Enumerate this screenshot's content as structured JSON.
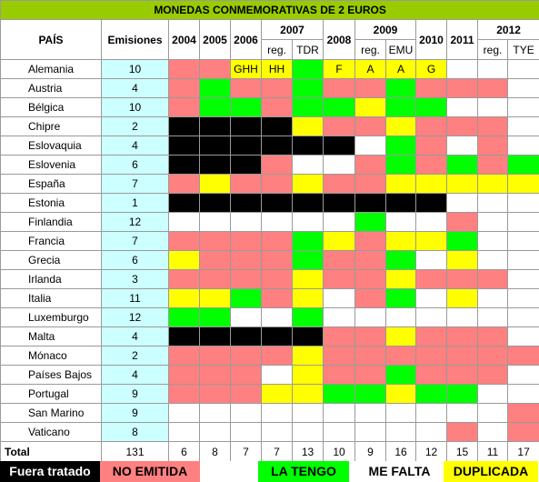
{
  "title": "MONEDAS CONMEMORATIVAS DE 2 EUROS",
  "headers": {
    "pais": "PAÍS",
    "emisiones": "Emisiones",
    "y2004": "2004",
    "y2005": "2005",
    "y2006": "2006",
    "y2007": "2007",
    "y2007_reg": "reg.",
    "y2007_tdr": "TDR",
    "y2008": "2008",
    "y2009": "2009",
    "y2009_reg": "reg.",
    "y2009_emu": "EMU",
    "y2010": "2010",
    "y2011": "2011",
    "y2012": "2012",
    "y2012_reg": "reg.",
    "y2012_tye": "TYE"
  },
  "status_colors": {
    "N": "#ff8080",
    "T": "#00ff00",
    "F": "#ffffff",
    "D": "#ffff00",
    "X": "#000000"
  },
  "rows": [
    {
      "country": "Alemania",
      "emisiones": "10",
      "cells": [
        [
          "N",
          ""
        ],
        [
          "N",
          ""
        ],
        [
          "D",
          "GHH"
        ],
        [
          "D",
          "HH"
        ],
        [
          "T",
          ""
        ],
        [
          "D",
          "F"
        ],
        [
          "D",
          "A"
        ],
        [
          "D",
          "A"
        ],
        [
          "D",
          "G"
        ],
        [
          "F",
          ""
        ],
        [
          "F",
          ""
        ],
        [
          "F",
          ""
        ]
      ]
    },
    {
      "country": "Austria",
      "emisiones": "4",
      "cells": [
        [
          "N",
          ""
        ],
        [
          "T",
          ""
        ],
        [
          "N",
          ""
        ],
        [
          "N",
          ""
        ],
        [
          "T",
          ""
        ],
        [
          "N",
          ""
        ],
        [
          "N",
          ""
        ],
        [
          "T",
          ""
        ],
        [
          "N",
          ""
        ],
        [
          "N",
          ""
        ],
        [
          "N",
          ""
        ],
        [
          "F",
          ""
        ]
      ]
    },
    {
      "country": "Bélgica",
      "emisiones": "10",
      "cells": [
        [
          "N",
          ""
        ],
        [
          "T",
          ""
        ],
        [
          "T",
          ""
        ],
        [
          "N",
          ""
        ],
        [
          "T",
          ""
        ],
        [
          "T",
          ""
        ],
        [
          "D",
          ""
        ],
        [
          "T",
          ""
        ],
        [
          "T",
          ""
        ],
        [
          "F",
          ""
        ],
        [
          "F",
          ""
        ],
        [
          "F",
          ""
        ]
      ]
    },
    {
      "country": "Chipre",
      "emisiones": "2",
      "cells": [
        [
          "X",
          ""
        ],
        [
          "X",
          ""
        ],
        [
          "X",
          ""
        ],
        [
          "X",
          ""
        ],
        [
          "D",
          ""
        ],
        [
          "N",
          ""
        ],
        [
          "N",
          ""
        ],
        [
          "D",
          ""
        ],
        [
          "N",
          ""
        ],
        [
          "N",
          ""
        ],
        [
          "N",
          ""
        ],
        [
          "F",
          ""
        ]
      ]
    },
    {
      "country": "Eslovaquia",
      "emisiones": "4",
      "cells": [
        [
          "X",
          ""
        ],
        [
          "X",
          ""
        ],
        [
          "X",
          ""
        ],
        [
          "X",
          ""
        ],
        [
          "X",
          ""
        ],
        [
          "X",
          ""
        ],
        [
          "F",
          ""
        ],
        [
          "T",
          ""
        ],
        [
          "N",
          ""
        ],
        [
          "F",
          ""
        ],
        [
          "N",
          ""
        ],
        [
          "F",
          ""
        ]
      ]
    },
    {
      "country": "Eslovenia",
      "emisiones": "6",
      "cells": [
        [
          "X",
          ""
        ],
        [
          "X",
          ""
        ],
        [
          "X",
          ""
        ],
        [
          "N",
          ""
        ],
        [
          "F",
          ""
        ],
        [
          "F",
          ""
        ],
        [
          "N",
          ""
        ],
        [
          "T",
          ""
        ],
        [
          "N",
          ""
        ],
        [
          "T",
          ""
        ],
        [
          "N",
          ""
        ],
        [
          "T",
          ""
        ]
      ]
    },
    {
      "country": "España",
      "emisiones": "7",
      "cells": [
        [
          "N",
          ""
        ],
        [
          "D",
          ""
        ],
        [
          "N",
          ""
        ],
        [
          "N",
          ""
        ],
        [
          "D",
          ""
        ],
        [
          "N",
          ""
        ],
        [
          "N",
          ""
        ],
        [
          "D",
          ""
        ],
        [
          "D",
          ""
        ],
        [
          "D",
          ""
        ],
        [
          "D",
          ""
        ],
        [
          "D",
          ""
        ]
      ]
    },
    {
      "country": "Estonia",
      "emisiones": "1",
      "cells": [
        [
          "X",
          ""
        ],
        [
          "X",
          ""
        ],
        [
          "X",
          ""
        ],
        [
          "X",
          ""
        ],
        [
          "X",
          ""
        ],
        [
          "X",
          ""
        ],
        [
          "X",
          ""
        ],
        [
          "X",
          ""
        ],
        [
          "X",
          ""
        ],
        [
          "F",
          ""
        ],
        [
          "F",
          ""
        ],
        [
          "F",
          ""
        ]
      ]
    },
    {
      "country": "Finlandia",
      "emisiones": "12",
      "cells": [
        [
          "F",
          ""
        ],
        [
          "F",
          ""
        ],
        [
          "F",
          ""
        ],
        [
          "F",
          ""
        ],
        [
          "F",
          ""
        ],
        [
          "F",
          ""
        ],
        [
          "T",
          ""
        ],
        [
          "F",
          ""
        ],
        [
          "F",
          ""
        ],
        [
          "N",
          ""
        ],
        [
          "F",
          ""
        ],
        [
          "F",
          ""
        ]
      ]
    },
    {
      "country": "Francia",
      "emisiones": "7",
      "cells": [
        [
          "N",
          ""
        ],
        [
          "N",
          ""
        ],
        [
          "N",
          ""
        ],
        [
          "N",
          ""
        ],
        [
          "T",
          ""
        ],
        [
          "D",
          ""
        ],
        [
          "N",
          ""
        ],
        [
          "D",
          ""
        ],
        [
          "D",
          ""
        ],
        [
          "T",
          ""
        ],
        [
          "F",
          ""
        ],
        [
          "F",
          ""
        ]
      ]
    },
    {
      "country": "Grecia",
      "emisiones": "6",
      "cells": [
        [
          "D",
          ""
        ],
        [
          "N",
          ""
        ],
        [
          "N",
          ""
        ],
        [
          "N",
          ""
        ],
        [
          "T",
          ""
        ],
        [
          "N",
          ""
        ],
        [
          "N",
          ""
        ],
        [
          "T",
          ""
        ],
        [
          "F",
          ""
        ],
        [
          "D",
          ""
        ],
        [
          "F",
          ""
        ],
        [
          "F",
          ""
        ]
      ]
    },
    {
      "country": "Irlanda",
      "emisiones": "3",
      "cells": [
        [
          "N",
          ""
        ],
        [
          "N",
          ""
        ],
        [
          "N",
          ""
        ],
        [
          "N",
          ""
        ],
        [
          "D",
          ""
        ],
        [
          "N",
          ""
        ],
        [
          "N",
          ""
        ],
        [
          "D",
          ""
        ],
        [
          "N",
          ""
        ],
        [
          "N",
          ""
        ],
        [
          "N",
          ""
        ],
        [
          "F",
          ""
        ]
      ]
    },
    {
      "country": "Italia",
      "emisiones": "11",
      "cells": [
        [
          "D",
          ""
        ],
        [
          "D",
          ""
        ],
        [
          "T",
          ""
        ],
        [
          "N",
          ""
        ],
        [
          "D",
          ""
        ],
        [
          "F",
          ""
        ],
        [
          "N",
          ""
        ],
        [
          "T",
          ""
        ],
        [
          "F",
          ""
        ],
        [
          "D",
          ""
        ],
        [
          "F",
          ""
        ],
        [
          "F",
          ""
        ]
      ]
    },
    {
      "country": "Luxemburgo",
      "emisiones": "12",
      "cells": [
        [
          "T",
          ""
        ],
        [
          "T",
          ""
        ],
        [
          "F",
          ""
        ],
        [
          "F",
          ""
        ],
        [
          "T",
          ""
        ],
        [
          "F",
          ""
        ],
        [
          "F",
          ""
        ],
        [
          "F",
          ""
        ],
        [
          "F",
          ""
        ],
        [
          "F",
          ""
        ],
        [
          "F",
          ""
        ],
        [
          "F",
          ""
        ]
      ]
    },
    {
      "country": "Malta",
      "emisiones": "4",
      "cells": [
        [
          "X",
          ""
        ],
        [
          "X",
          ""
        ],
        [
          "X",
          ""
        ],
        [
          "X",
          ""
        ],
        [
          "X",
          ""
        ],
        [
          "N",
          ""
        ],
        [
          "N",
          ""
        ],
        [
          "D",
          ""
        ],
        [
          "N",
          ""
        ],
        [
          "N",
          ""
        ],
        [
          "N",
          ""
        ],
        [
          "F",
          ""
        ]
      ]
    },
    {
      "country": "Mónaco",
      "emisiones": "2",
      "cells": [
        [
          "N",
          ""
        ],
        [
          "N",
          ""
        ],
        [
          "N",
          ""
        ],
        [
          "N",
          ""
        ],
        [
          "D",
          ""
        ],
        [
          "N",
          ""
        ],
        [
          "N",
          ""
        ],
        [
          "N",
          ""
        ],
        [
          "N",
          ""
        ],
        [
          "N",
          ""
        ],
        [
          "N",
          ""
        ],
        [
          "N",
          ""
        ]
      ]
    },
    {
      "country": "Países Bajos",
      "emisiones": "4",
      "cells": [
        [
          "N",
          ""
        ],
        [
          "N",
          ""
        ],
        [
          "N",
          ""
        ],
        [
          "F",
          ""
        ],
        [
          "D",
          ""
        ],
        [
          "N",
          ""
        ],
        [
          "N",
          ""
        ],
        [
          "T",
          ""
        ],
        [
          "N",
          ""
        ],
        [
          "N",
          ""
        ],
        [
          "N",
          ""
        ],
        [
          "F",
          ""
        ]
      ]
    },
    {
      "country": "Portugal",
      "emisiones": "9",
      "cells": [
        [
          "N",
          ""
        ],
        [
          "N",
          ""
        ],
        [
          "N",
          ""
        ],
        [
          "D",
          ""
        ],
        [
          "D",
          ""
        ],
        [
          "T",
          ""
        ],
        [
          "T",
          ""
        ],
        [
          "D",
          ""
        ],
        [
          "T",
          ""
        ],
        [
          "T",
          ""
        ],
        [
          "F",
          ""
        ],
        [
          "F",
          ""
        ]
      ]
    },
    {
      "country": "San Marino",
      "emisiones": "9",
      "cells": [
        [
          "F",
          ""
        ],
        [
          "F",
          ""
        ],
        [
          "F",
          ""
        ],
        [
          "F",
          ""
        ],
        [
          "F",
          ""
        ],
        [
          "F",
          ""
        ],
        [
          "F",
          ""
        ],
        [
          "F",
          ""
        ],
        [
          "F",
          ""
        ],
        [
          "F",
          ""
        ],
        [
          "F",
          ""
        ],
        [
          "N",
          ""
        ]
      ]
    },
    {
      "country": "Vaticano",
      "emisiones": "8",
      "cells": [
        [
          "F",
          ""
        ],
        [
          "F",
          ""
        ],
        [
          "F",
          ""
        ],
        [
          "F",
          ""
        ],
        [
          "F",
          ""
        ],
        [
          "F",
          ""
        ],
        [
          "F",
          ""
        ],
        [
          "F",
          ""
        ],
        [
          "F",
          ""
        ],
        [
          "N",
          ""
        ],
        [
          "F",
          ""
        ],
        [
          "N",
          ""
        ]
      ]
    }
  ],
  "totals": {
    "label": "Total",
    "emisiones": "131",
    "values": [
      "6",
      "8",
      "7",
      "7",
      "13",
      "10",
      "9",
      "16",
      "12",
      "15",
      "11",
      "17"
    ]
  },
  "legend": {
    "fuera": "Fuera tratado",
    "no_emitida": "NO EMITIDA",
    "la_tengo": "LA TENGO",
    "me_falta": "ME FALTA",
    "duplicada": "DUPLICADA"
  }
}
